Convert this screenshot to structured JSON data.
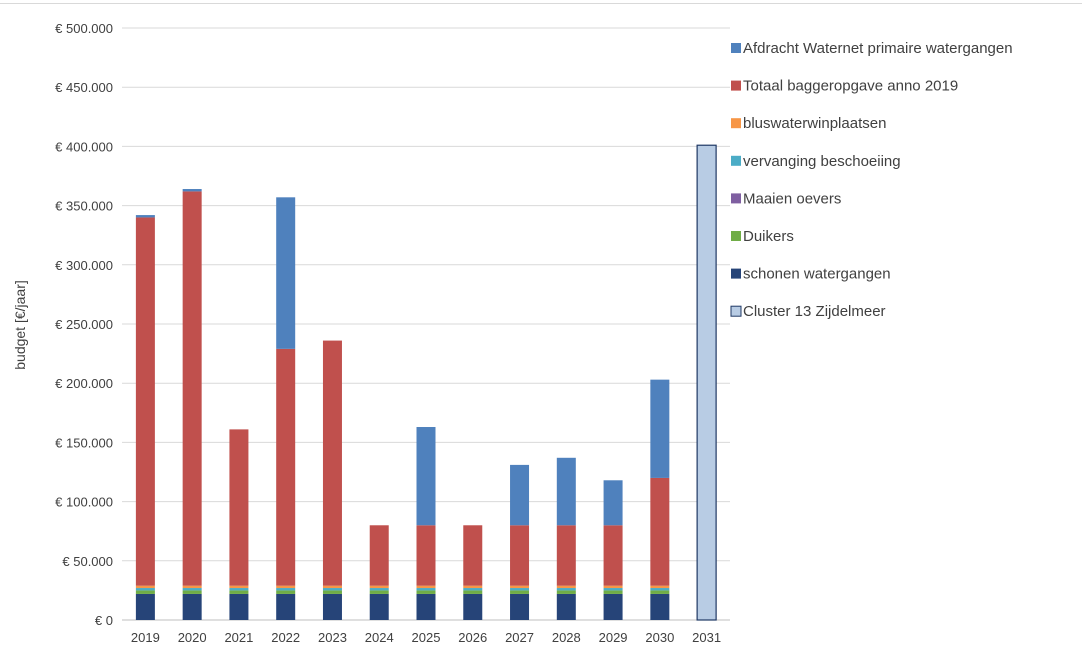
{
  "chart_data": {
    "type": "bar",
    "stacked": true,
    "title": "",
    "xlabel": "",
    "ylabel": "budget [€/jaar]",
    "ylim": [
      0,
      500000
    ],
    "y_ticks": [
      0,
      50000,
      100000,
      150000,
      200000,
      250000,
      300000,
      350000,
      400000,
      450000,
      500000
    ],
    "y_tick_labels": [
      "€ 0",
      "€ 50.000",
      "€ 100.000",
      "€ 150.000",
      "€ 200.000",
      "€ 250.000",
      "€ 300.000",
      "€ 350.000",
      "€ 400.000",
      "€ 450.000",
      "€ 500.000"
    ],
    "grid": true,
    "legend_position": "right",
    "categories": [
      "2019",
      "2020",
      "2021",
      "2022",
      "2023",
      "2024",
      "2025",
      "2026",
      "2027",
      "2028",
      "2029",
      "2030",
      "2031"
    ],
    "series": [
      {
        "name": "schonen watergangen",
        "color": "#264478",
        "values": [
          22000,
          22000,
          22000,
          22000,
          22000,
          22000,
          22000,
          22000,
          22000,
          22000,
          22000,
          22000,
          0
        ]
      },
      {
        "name": "Duikers",
        "color": "#70AD47",
        "values": [
          3000,
          3000,
          3000,
          3000,
          3000,
          3000,
          3000,
          3000,
          3000,
          3000,
          3000,
          3000,
          0
        ]
      },
      {
        "name": "Maaien oevers",
        "color": "#7F5FA1",
        "values": [
          0,
          0,
          0,
          0,
          0,
          0,
          0,
          0,
          0,
          0,
          0,
          0,
          0
        ]
      },
      {
        "name": "vervanging beschoeiing",
        "color": "#4BACC6",
        "values": [
          2000,
          2000,
          2000,
          2000,
          2000,
          2000,
          2000,
          2000,
          2000,
          2000,
          2000,
          2000,
          0
        ]
      },
      {
        "name": "bluswaterwinplaatsen",
        "color": "#F79646",
        "values": [
          2000,
          2000,
          2000,
          2000,
          2000,
          2000,
          2000,
          2000,
          2000,
          2000,
          2000,
          2000,
          0
        ]
      },
      {
        "name": "Totaal baggeropgave anno 2019",
        "color": "#C0504D",
        "values": [
          311000,
          333000,
          132000,
          200000,
          207000,
          51000,
          51000,
          51000,
          51000,
          51000,
          51000,
          91000,
          0
        ]
      },
      {
        "name": "Afdracht Waternet primaire watergangen",
        "color": "#4F81BD",
        "values": [
          2000,
          2000,
          0,
          128000,
          0,
          0,
          83000,
          0,
          51000,
          57000,
          38000,
          83000,
          0
        ]
      },
      {
        "name": "Cluster 13 Zijdelmeer",
        "color": "#B8CCE4",
        "stroke": "#1F3864",
        "values": [
          0,
          0,
          0,
          0,
          0,
          0,
          0,
          0,
          0,
          0,
          0,
          0,
          401000
        ]
      }
    ],
    "legend_order": [
      "Afdracht Waternet primaire watergangen",
      "Totaal baggeropgave anno 2019",
      "bluswaterwinplaatsen",
      "vervanging beschoeiing",
      "Maaien oevers",
      "Duikers",
      "schonen watergangen",
      "Cluster 13 Zijdelmeer"
    ]
  }
}
